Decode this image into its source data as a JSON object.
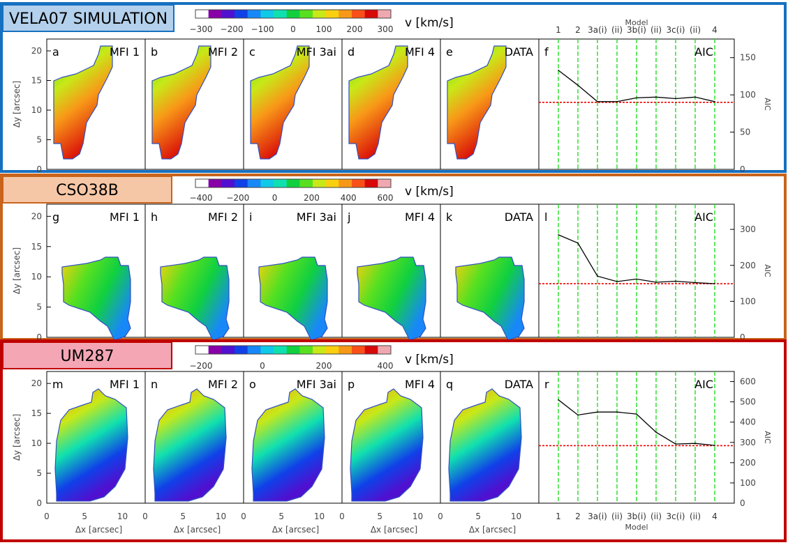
{
  "colors": {
    "vela_border": "#1670c0",
    "vela_title_bg": "#b3d0ec",
    "cso_border": "#c8641c",
    "cso_title_bg": "#f6c7a6",
    "um_border": "#c00000",
    "um_title_bg": "#f4a6b4",
    "model_line": "#22dd22",
    "data_line": "#ee0000",
    "aic_line": "#000000",
    "velocity_colormap": [
      "#ffffff",
      "#8800a8",
      "#5010d0",
      "#1040e8",
      "#1888f8",
      "#10c8e8",
      "#10e0b0",
      "#10d040",
      "#58e020",
      "#c8e818",
      "#f8d010",
      "#f89818",
      "#f85018",
      "#d80808",
      "#f0a8b0"
    ]
  },
  "model_axis": {
    "title": "Model",
    "labels": [
      "1",
      "2",
      "3a(i)",
      "(ii)",
      "3b(i)",
      "(ii)",
      "3c(i)",
      "(ii)",
      "4"
    ]
  },
  "xaxis_label": "Δx [arcsec]",
  "yaxis_label": "Δy [arcsec]",
  "aic_label": "AIC",
  "map_xticks": [
    "0",
    "5",
    "10"
  ],
  "map_yticks": [
    "0",
    "5",
    "10",
    "15",
    "20"
  ],
  "rows": [
    {
      "title": "VELA07 SIMULATION",
      "colorbar": {
        "label": "v [km/s]",
        "ticks": [
          "−300",
          "−200",
          "−100",
          "0",
          "100",
          "200",
          "300"
        ]
      },
      "panels": [
        {
          "letter": "a",
          "name": "MFI  1"
        },
        {
          "letter": "b",
          "name": "MFI  2"
        },
        {
          "letter": "c",
          "name": "MFI  3ai"
        },
        {
          "letter": "d",
          "name": "MFI  4"
        },
        {
          "letter": "e",
          "name": "DATA"
        }
      ],
      "aic_letter": "f",
      "aic_ticks": [
        "0",
        "50",
        "100",
        "150"
      ]
    },
    {
      "title": "CSO38B",
      "colorbar": {
        "label": "v [km/s]",
        "ticks": [
          "−400",
          "−200",
          "0",
          "200",
          "400",
          "600"
        ]
      },
      "panels": [
        {
          "letter": "g",
          "name": "MFI  1"
        },
        {
          "letter": "h",
          "name": "MFI  2"
        },
        {
          "letter": "i",
          "name": "MFI  3ai"
        },
        {
          "letter": "j",
          "name": "MFI  4"
        },
        {
          "letter": "k",
          "name": "DATA"
        }
      ],
      "aic_letter": "l",
      "aic_ticks": [
        "0",
        "100",
        "200",
        "300"
      ]
    },
    {
      "title": "UM287",
      "colorbar": {
        "label": "v [km/s]",
        "ticks": [
          "−200",
          "0",
          "200",
          "400"
        ]
      },
      "panels": [
        {
          "letter": "m",
          "name": "MFI  1"
        },
        {
          "letter": "n",
          "name": "MFI  2"
        },
        {
          "letter": "o",
          "name": "MFI  3ai"
        },
        {
          "letter": "p",
          "name": "MFI  4"
        },
        {
          "letter": "q",
          "name": "DATA"
        }
      ],
      "aic_letter": "r",
      "aic_ticks": [
        "0",
        "100",
        "200",
        "300",
        "400",
        "500",
        "600"
      ]
    }
  ],
  "chart_data": [
    {
      "type": "line",
      "title": "",
      "panel": "f",
      "xlabel": "Model",
      "ylabel": "AIC",
      "categories": [
        "1",
        "2",
        "3a(i)",
        "(ii)",
        "3b(i)",
        "(ii)",
        "3c(i)",
        "(ii)",
        "4"
      ],
      "values": [
        133,
        113,
        91,
        91,
        96,
        97,
        95,
        97,
        91
      ],
      "reference_line": 90,
      "ylim": [
        0,
        175
      ],
      "grid": false
    },
    {
      "type": "line",
      "title": "",
      "panel": "l",
      "xlabel": "Model",
      "ylabel": "AIC",
      "categories": [
        "1",
        "2",
        "3a(i)",
        "(ii)",
        "3b(i)",
        "(ii)",
        "3c(i)",
        "(ii)",
        "4"
      ],
      "values": [
        285,
        262,
        170,
        155,
        162,
        153,
        156,
        152,
        149
      ],
      "reference_line": 149,
      "ylim": [
        0,
        370
      ],
      "grid": false
    },
    {
      "type": "line",
      "title": "",
      "panel": "r",
      "xlabel": "Model",
      "ylabel": "AIC",
      "categories": [
        "1",
        "2",
        "3a(i)",
        "(ii)",
        "3b(i)",
        "(ii)",
        "3c(i)",
        "(ii)",
        "4"
      ],
      "values": [
        510,
        435,
        450,
        450,
        440,
        350,
        292,
        295,
        285
      ],
      "reference_line": 284,
      "ylim": [
        0,
        650
      ],
      "grid": false
    }
  ]
}
